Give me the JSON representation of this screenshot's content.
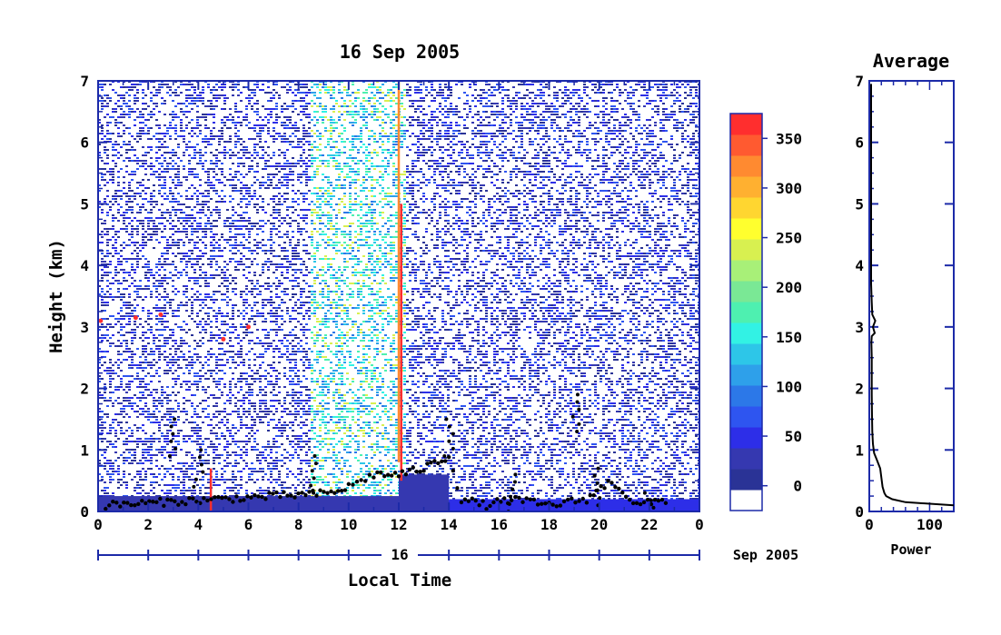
{
  "chart_data": [
    {
      "type": "heatmap",
      "title": "16 Sep 2005",
      "xlabel": "Local Time",
      "ylabel": "Height (km)",
      "x_ticks": [
        "0",
        "2",
        "4",
        "6",
        "8",
        "10",
        "12",
        "14",
        "16",
        "18",
        "20",
        "22",
        "0"
      ],
      "y_ticks": [
        "0",
        "1",
        "2",
        "3",
        "4",
        "5",
        "6",
        "7"
      ],
      "xlim": [
        0,
        24
      ],
      "ylim": [
        0,
        7
      ],
      "date_axis": {
        "day_label": "16",
        "month_year_label": "Sep 2005"
      },
      "colorbar": {
        "ticks": [
          "0",
          "50",
          "100",
          "150",
          "200",
          "250",
          "300",
          "350"
        ],
        "range": [
          -25,
          375
        ],
        "colors": [
          "#ffffff",
          "#2a3396",
          "#3538b0",
          "#2d2ee8",
          "#2e55f0",
          "#2c78e8",
          "#2ea0ea",
          "#2dc6e8",
          "#32f2e4",
          "#4ef0b0",
          "#7ae895",
          "#a8f078",
          "#d8f050",
          "#ffff2e",
          "#ffd630",
          "#ffb030",
          "#ff8a30",
          "#ff5a30",
          "#ff2e2e"
        ]
      },
      "features": {
        "boundary_layer_height_km": [
          [
            0.3,
            0.1
          ],
          [
            9.3,
            0.3
          ],
          [
            10.0,
            0.4
          ],
          [
            10.5,
            0.5
          ],
          [
            11.0,
            0.6
          ],
          [
            12.0,
            0.6
          ],
          [
            13.0,
            0.7
          ],
          [
            14.0,
            0.9
          ],
          [
            14.5,
            0.2
          ],
          [
            15.5,
            0.1
          ],
          [
            16.5,
            0.2
          ],
          [
            18.0,
            0.1
          ],
          [
            19.5,
            0.2
          ],
          [
            20.5,
            0.5
          ],
          [
            21.5,
            0.1
          ],
          [
            22.8,
            0.2
          ]
        ],
        "elevated_layer_km": [
          [
            0.1,
            3.1
          ],
          [
            1.5,
            3.15
          ],
          [
            2.5,
            3.2
          ],
          [
            5.0,
            2.8
          ],
          [
            6.0,
            3.0
          ]
        ],
        "transient_plumes": [
          [
            3.0,
            1.5
          ],
          [
            4.0,
            1.0
          ],
          [
            8.5,
            0.9
          ],
          [
            14.0,
            1.5
          ],
          [
            16.5,
            0.6
          ],
          [
            19.0,
            1.9
          ],
          [
            20.0,
            0.7
          ],
          [
            22.0,
            0.3
          ]
        ]
      }
    },
    {
      "type": "line",
      "title": "Average",
      "xlabel": "Power",
      "x_ticks": [
        "0",
        "100"
      ],
      "y_ticks": [
        "0",
        "1",
        "2",
        "3",
        "4",
        "5",
        "6",
        "7"
      ],
      "xlim": [
        0,
        140
      ],
      "ylim": [
        0,
        7
      ],
      "series": [
        {
          "x": [
            140,
            60,
            38,
            28,
            25,
            22,
            20,
            18,
            12,
            8,
            6,
            5,
            4.5,
            4,
            4,
            4,
            3.5,
            4,
            9,
            6,
            10,
            5,
            4,
            3,
            3,
            3,
            3,
            3,
            3,
            3,
            3
          ],
          "y": [
            0.1,
            0.15,
            0.2,
            0.25,
            0.3,
            0.4,
            0.55,
            0.7,
            0.85,
            0.95,
            1.1,
            1.3,
            1.55,
            1.9,
            2.2,
            2.5,
            2.75,
            2.85,
            2.9,
            3.0,
            3.1,
            3.2,
            3.4,
            3.7,
            4.0,
            4.5,
            5.0,
            5.5,
            6.0,
            6.5,
            6.95
          ]
        }
      ]
    }
  ]
}
